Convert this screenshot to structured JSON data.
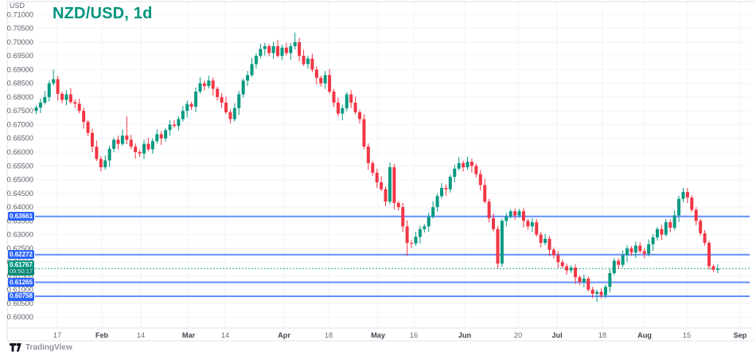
{
  "attribution": {
    "logo": "tradingview-logo",
    "text": "TradingView"
  },
  "chart_data": {
    "type": "candlestick",
    "title": "NZD/USD, 1d",
    "symbol": "NZD/USD",
    "interval": "1d",
    "y_axis": {
      "unit": "USD",
      "min": 0.6,
      "max": 0.71,
      "tick_step": 0.005,
      "tick_labels": [
        "0.71000",
        "0.70500",
        "0.70000",
        "0.69500",
        "0.69000",
        "0.68500",
        "0.68000",
        "0.67500",
        "0.67000",
        "0.66500",
        "0.66000",
        "0.65500",
        "0.65000",
        "0.64500",
        "0.64000",
        "0.63500",
        "0.63000",
        "0.62500",
        "0.62000",
        "0.61500",
        "0.61000",
        "0.60500",
        "0.60000"
      ]
    },
    "x_axis": {
      "tick_labels": [
        "17",
        "Feb",
        "14",
        "Mar",
        "14",
        "Apr",
        "18",
        "May",
        "16",
        "Jun",
        "20",
        "Jul",
        "18",
        "Aug",
        "15",
        "Sep"
      ]
    },
    "levels": [
      {
        "price": 0.63661,
        "label": "0.63661"
      },
      {
        "price": 0.62272,
        "label": "0.62272"
      },
      {
        "price": 0.61265,
        "label": "0.61265"
      },
      {
        "price": 0.60758,
        "label": "0.60758"
      }
    ],
    "last_price": {
      "value": 0.61767,
      "label": "0.61767",
      "countdown": "09:50:17"
    },
    "colors": {
      "up": "#089981",
      "down": "#F23645",
      "level_line": "#2962FF",
      "last_price_line": "#089981",
      "title": "#00947e",
      "grid": "#f0f3fa",
      "axis_text": "#5d606b",
      "border": "#e0e3eb"
    },
    "legend_position": "none",
    "grid": true,
    "candles": [
      [
        0.675,
        0.677,
        0.6738,
        0.6762
      ],
      [
        0.6762,
        0.6795,
        0.6742,
        0.678
      ],
      [
        0.678,
        0.6822,
        0.6773,
        0.68
      ],
      [
        0.68,
        0.686,
        0.6784,
        0.685
      ],
      [
        0.685,
        0.69,
        0.6841,
        0.6865
      ],
      [
        0.6865,
        0.6877,
        0.6788,
        0.6812
      ],
      [
        0.6812,
        0.682,
        0.6778,
        0.679
      ],
      [
        0.679,
        0.6825,
        0.677,
        0.681
      ],
      [
        0.681,
        0.6832,
        0.6775,
        0.6782
      ],
      [
        0.6782,
        0.6792,
        0.676,
        0.6776
      ],
      [
        0.6776,
        0.6794,
        0.6741,
        0.675
      ],
      [
        0.675,
        0.6762,
        0.6686,
        0.671
      ],
      [
        0.671,
        0.6718,
        0.6658,
        0.667
      ],
      [
        0.667,
        0.6685,
        0.66,
        0.662
      ],
      [
        0.662,
        0.6642,
        0.6568,
        0.6575
      ],
      [
        0.6575,
        0.6585,
        0.653,
        0.6545
      ],
      [
        0.6545,
        0.6588,
        0.6536,
        0.657
      ],
      [
        0.657,
        0.6624,
        0.6546,
        0.6612
      ],
      [
        0.6612,
        0.6653,
        0.66,
        0.6645
      ],
      [
        0.6645,
        0.666,
        0.661,
        0.663
      ],
      [
        0.663,
        0.6682,
        0.6623,
        0.666
      ],
      [
        0.666,
        0.673,
        0.6629,
        0.6645
      ],
      [
        0.6645,
        0.6663,
        0.6611,
        0.662
      ],
      [
        0.662,
        0.6632,
        0.6576,
        0.66
      ],
      [
        0.66,
        0.6608,
        0.6583,
        0.6595
      ],
      [
        0.6595,
        0.6645,
        0.6575,
        0.663
      ],
      [
        0.663,
        0.6652,
        0.6603,
        0.661
      ],
      [
        0.661,
        0.665,
        0.6594,
        0.664
      ],
      [
        0.664,
        0.6683,
        0.6631,
        0.6665
      ],
      [
        0.6665,
        0.6677,
        0.6626,
        0.665
      ],
      [
        0.665,
        0.6688,
        0.6638,
        0.668
      ],
      [
        0.668,
        0.6715,
        0.666,
        0.67
      ],
      [
        0.67,
        0.6717,
        0.6688,
        0.6695
      ],
      [
        0.6695,
        0.673,
        0.6679,
        0.672
      ],
      [
        0.672,
        0.6768,
        0.6711,
        0.675
      ],
      [
        0.675,
        0.6787,
        0.6726,
        0.6775
      ],
      [
        0.6775,
        0.6783,
        0.6753,
        0.6765
      ],
      [
        0.6765,
        0.6835,
        0.6745,
        0.682
      ],
      [
        0.682,
        0.6872,
        0.6813,
        0.685
      ],
      [
        0.685,
        0.686,
        0.6824,
        0.684
      ],
      [
        0.684,
        0.6878,
        0.6831,
        0.686
      ],
      [
        0.686,
        0.6872,
        0.6806,
        0.683
      ],
      [
        0.683,
        0.6838,
        0.6788,
        0.68
      ],
      [
        0.68,
        0.6815,
        0.676,
        0.678
      ],
      [
        0.678,
        0.6802,
        0.6738,
        0.6745
      ],
      [
        0.6745,
        0.6755,
        0.6704,
        0.672
      ],
      [
        0.672,
        0.6778,
        0.6711,
        0.676
      ],
      [
        0.676,
        0.6822,
        0.6736,
        0.681
      ],
      [
        0.681,
        0.6868,
        0.6798,
        0.686
      ],
      [
        0.686,
        0.6895,
        0.684,
        0.688
      ],
      [
        0.688,
        0.6942,
        0.6873,
        0.692
      ],
      [
        0.692,
        0.696,
        0.6904,
        0.695
      ],
      [
        0.695,
        0.6993,
        0.6941,
        0.6975
      ],
      [
        0.6975,
        0.6997,
        0.6951,
        0.6985
      ],
      [
        0.6985,
        0.6993,
        0.6948,
        0.696
      ],
      [
        0.696,
        0.7,
        0.694,
        0.6985
      ],
      [
        0.6985,
        0.7007,
        0.6943,
        0.695
      ],
      [
        0.695,
        0.699,
        0.6934,
        0.698
      ],
      [
        0.698,
        0.6998,
        0.6951,
        0.696
      ],
      [
        0.696,
        0.6997,
        0.6936,
        0.6985
      ],
      [
        0.6985,
        0.7035,
        0.6973,
        0.7
      ],
      [
        0.7,
        0.7015,
        0.693,
        0.695
      ],
      [
        0.695,
        0.6972,
        0.6913,
        0.692
      ],
      [
        0.692,
        0.695,
        0.6904,
        0.694
      ],
      [
        0.694,
        0.6958,
        0.6891,
        0.69
      ],
      [
        0.69,
        0.6912,
        0.6846,
        0.687
      ],
      [
        0.687,
        0.6878,
        0.6838,
        0.685
      ],
      [
        0.685,
        0.6895,
        0.683,
        0.688
      ],
      [
        0.688,
        0.6902,
        0.6813,
        0.682
      ],
      [
        0.682,
        0.683,
        0.6764,
        0.678
      ],
      [
        0.678,
        0.6798,
        0.6731,
        0.674
      ],
      [
        0.674,
        0.6772,
        0.6716,
        0.676
      ],
      [
        0.676,
        0.6818,
        0.6748,
        0.681
      ],
      [
        0.681,
        0.6825,
        0.676,
        0.678
      ],
      [
        0.678,
        0.6802,
        0.6738,
        0.6745
      ],
      [
        0.6745,
        0.6755,
        0.6704,
        0.672
      ],
      [
        0.672,
        0.6738,
        0.6611,
        0.662
      ],
      [
        0.662,
        0.6632,
        0.6536,
        0.656
      ],
      [
        0.656,
        0.6568,
        0.6513,
        0.6525
      ],
      [
        0.6525,
        0.654,
        0.647,
        0.649
      ],
      [
        0.649,
        0.6512,
        0.6458,
        0.6465
      ],
      [
        0.6465,
        0.6475,
        0.6404,
        0.642
      ],
      [
        0.642,
        0.6563,
        0.6411,
        0.6545
      ],
      [
        0.6545,
        0.6557,
        0.6391,
        0.6415
      ],
      [
        0.6415,
        0.6423,
        0.6388,
        0.64
      ],
      [
        0.64,
        0.6415,
        0.631,
        0.633
      ],
      [
        0.633,
        0.6352,
        0.6222,
        0.627
      ],
      [
        0.627,
        0.628,
        0.6252,
        0.6268
      ],
      [
        0.6268,
        0.631,
        0.6259,
        0.6292
      ],
      [
        0.6292,
        0.6332,
        0.6268,
        0.632
      ],
      [
        0.632,
        0.6338,
        0.6308,
        0.633
      ],
      [
        0.633,
        0.638,
        0.631,
        0.6365
      ],
      [
        0.6365,
        0.6422,
        0.6358,
        0.64
      ],
      [
        0.64,
        0.645,
        0.6384,
        0.644
      ],
      [
        0.644,
        0.6488,
        0.6431,
        0.647
      ],
      [
        0.647,
        0.6482,
        0.6441,
        0.6465
      ],
      [
        0.6465,
        0.6518,
        0.6453,
        0.651
      ],
      [
        0.651,
        0.6555,
        0.649,
        0.654
      ],
      [
        0.654,
        0.6582,
        0.6533,
        0.656
      ],
      [
        0.656,
        0.657,
        0.6529,
        0.6545
      ],
      [
        0.6545,
        0.6583,
        0.6536,
        0.6565
      ],
      [
        0.6565,
        0.6577,
        0.6526,
        0.655
      ],
      [
        0.655,
        0.6558,
        0.6508,
        0.652
      ],
      [
        0.652,
        0.6535,
        0.646,
        0.648
      ],
      [
        0.648,
        0.6502,
        0.6413,
        0.642
      ],
      [
        0.642,
        0.643,
        0.6344,
        0.636
      ],
      [
        0.636,
        0.6378,
        0.6311,
        0.632
      ],
      [
        0.632,
        0.6332,
        0.6177,
        0.6195
      ],
      [
        0.6195,
        0.6358,
        0.6183,
        0.635
      ],
      [
        0.635,
        0.638,
        0.633,
        0.6365
      ],
      [
        0.6365,
        0.6392,
        0.6358,
        0.6385
      ],
      [
        0.6385,
        0.6395,
        0.6354,
        0.637
      ],
      [
        0.637,
        0.6394,
        0.6361,
        0.6385
      ],
      [
        0.6385,
        0.6397,
        0.6326,
        0.635
      ],
      [
        0.635,
        0.6358,
        0.6318,
        0.633
      ],
      [
        0.633,
        0.636,
        0.631,
        0.6345
      ],
      [
        0.6345,
        0.6357,
        0.6293,
        0.63
      ],
      [
        0.63,
        0.631,
        0.6254,
        0.627
      ],
      [
        0.627,
        0.6303,
        0.6261,
        0.6285
      ],
      [
        0.6285,
        0.6297,
        0.6221,
        0.6245
      ],
      [
        0.6245,
        0.6253,
        0.6213,
        0.6225
      ],
      [
        0.6225,
        0.624,
        0.618,
        0.62
      ],
      [
        0.62,
        0.621,
        0.6178,
        0.6185
      ],
      [
        0.6185,
        0.6195,
        0.6154,
        0.617
      ],
      [
        0.617,
        0.619,
        0.6161,
        0.618
      ],
      [
        0.618,
        0.6192,
        0.6121,
        0.6145
      ],
      [
        0.6145,
        0.6153,
        0.6116,
        0.6128
      ],
      [
        0.6128,
        0.6155,
        0.6108,
        0.614
      ],
      [
        0.614,
        0.6148,
        0.6093,
        0.61
      ],
      [
        0.61,
        0.611,
        0.6069,
        0.6085
      ],
      [
        0.6085,
        0.61,
        0.6055,
        0.6092
      ],
      [
        0.6092,
        0.6104,
        0.6068,
        0.608
      ],
      [
        0.608,
        0.6118,
        0.6068,
        0.611
      ],
      [
        0.611,
        0.6175,
        0.609,
        0.616
      ],
      [
        0.616,
        0.6215,
        0.6153,
        0.6205
      ],
      [
        0.6205,
        0.6215,
        0.6174,
        0.619
      ],
      [
        0.619,
        0.6243,
        0.6181,
        0.6225
      ],
      [
        0.6225,
        0.6262,
        0.6201,
        0.625
      ],
      [
        0.625,
        0.6258,
        0.6223,
        0.6235
      ],
      [
        0.6235,
        0.6275,
        0.6215,
        0.626
      ],
      [
        0.626,
        0.6272,
        0.6233,
        0.624
      ],
      [
        0.624,
        0.625,
        0.6214,
        0.623
      ],
      [
        0.623,
        0.6283,
        0.6221,
        0.6265
      ],
      [
        0.6265,
        0.6302,
        0.6241,
        0.629
      ],
      [
        0.629,
        0.6328,
        0.6278,
        0.632
      ],
      [
        0.632,
        0.6335,
        0.628,
        0.63
      ],
      [
        0.63,
        0.6357,
        0.6293,
        0.6345
      ],
      [
        0.6345,
        0.6355,
        0.6309,
        0.6325
      ],
      [
        0.6325,
        0.6388,
        0.6316,
        0.637
      ],
      [
        0.637,
        0.6442,
        0.6346,
        0.643
      ],
      [
        0.643,
        0.647,
        0.6418,
        0.6455
      ],
      [
        0.6455,
        0.647,
        0.6415,
        0.6435
      ],
      [
        0.6435,
        0.6443,
        0.6383,
        0.639
      ],
      [
        0.639,
        0.64,
        0.6334,
        0.635
      ],
      [
        0.635,
        0.6358,
        0.6296,
        0.6305
      ],
      [
        0.6305,
        0.6317,
        0.626,
        0.627
      ],
      [
        0.627,
        0.6278,
        0.6173,
        0.6185
      ],
      [
        0.6185,
        0.6191,
        0.6164,
        0.6172
      ],
      [
        0.6172,
        0.6192,
        0.616,
        0.61767
      ]
    ]
  }
}
